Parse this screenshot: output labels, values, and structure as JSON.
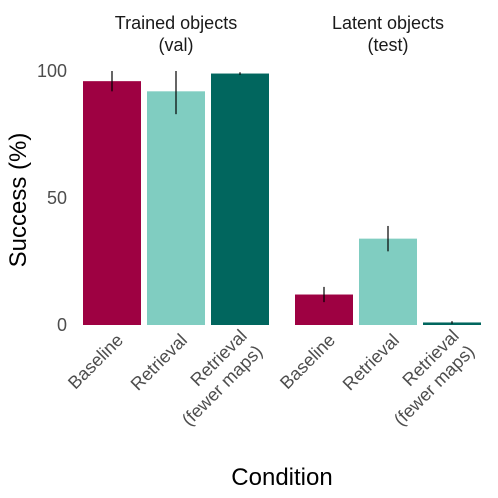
{
  "chart_data": {
    "type": "bar",
    "xlabel": "Condition",
    "ylabel": "Success (%)",
    "ylim": [
      0,
      100
    ],
    "yticks": [
      "0",
      "50",
      "100"
    ],
    "grid": false,
    "error_bars": true,
    "categories": [
      {
        "line1": "Baseline",
        "line2": "",
        "color": "#9e0142"
      },
      {
        "line1": "Retrieval",
        "line2": "",
        "color": "#80cdc1"
      },
      {
        "line1": "Retrieval",
        "line2": "(fewer maps)",
        "color": "#01665e"
      }
    ],
    "panels": [
      {
        "title_line1": "Trained objects",
        "title_line2": "(val)",
        "values": [
          96,
          92,
          99
        ],
        "err_low": [
          92,
          83,
          98.5
        ],
        "err_high": [
          100,
          100,
          99.5
        ]
      },
      {
        "title_line1": "Latent objects",
        "title_line2": "(test)",
        "values": [
          12,
          34,
          1
        ],
        "err_low": [
          9,
          29,
          0.5
        ],
        "err_high": [
          15,
          39,
          1.5
        ]
      }
    ]
  }
}
